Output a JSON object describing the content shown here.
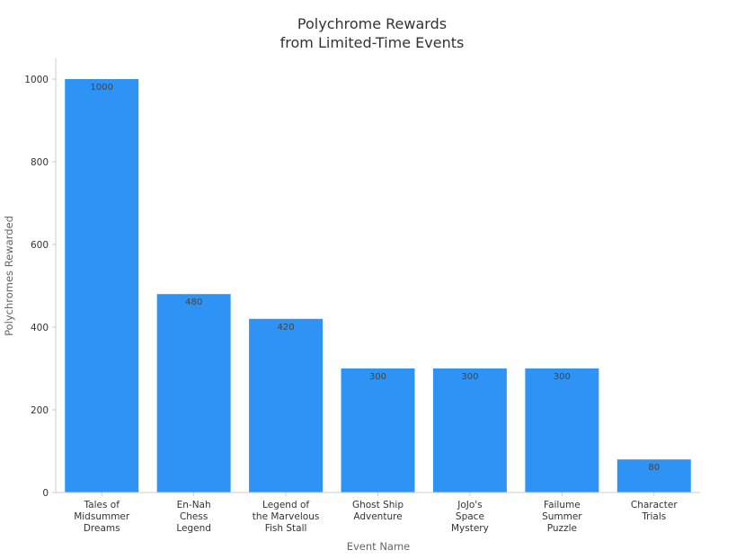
{
  "chart_data": {
    "type": "bar",
    "title": [
      "Polychrome Rewards",
      "from Limited-Time Events"
    ],
    "xlabel": "Event Name",
    "ylabel": "Polychromes Rewarded",
    "categories": [
      [
        "Tales of",
        "Midsummer",
        "Dreams"
      ],
      [
        "En-Nah",
        "Chess",
        "Legend"
      ],
      [
        "Legend of",
        "the Marvelous",
        "Fish Stall"
      ],
      [
        "Ghost Ship",
        "Adventure"
      ],
      [
        "JoJo's",
        "Space",
        "Mystery"
      ],
      [
        "Failume",
        "Summer",
        "Puzzle"
      ],
      [
        "Character",
        "Trials"
      ]
    ],
    "values": [
      1000,
      480,
      420,
      300,
      300,
      300,
      80
    ],
    "ylim": [
      0,
      1050
    ],
    "yticks": [
      0,
      200,
      400,
      600,
      800,
      1000
    ],
    "bar_color": "#2e93f5",
    "grid": false,
    "legend": "none"
  }
}
